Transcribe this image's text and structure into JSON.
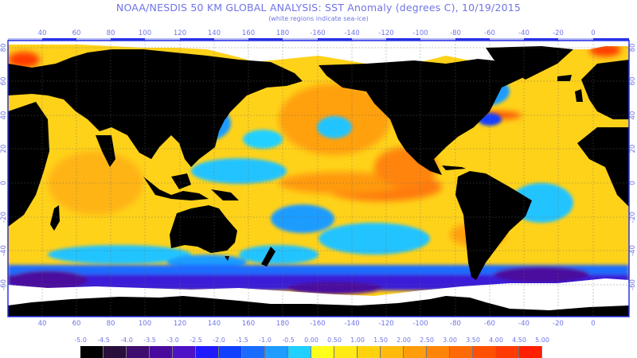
{
  "title": "NOAA/NESDIS 50 KM GLOBAL ANALYSIS: SST Anomaly (degrees C), 10/19/2015",
  "subtitle": "(white regions indicate sea-ice)",
  "lon_ticks": [
    "40",
    "60",
    "80",
    "100",
    "120",
    "140",
    "160",
    "180",
    "-160",
    "-140",
    "-120",
    "-100",
    "-80",
    "-60",
    "-40",
    "-20",
    "0"
  ],
  "lat_ticks": [
    "80",
    "60",
    "40",
    "20",
    "0",
    "-20",
    "-40",
    "-60"
  ],
  "colorbar": {
    "labels": [
      "-5.0",
      "-4.5",
      "-4.0",
      "-3.5",
      "-3.0",
      "-2.5",
      "-2.0",
      "-1.5",
      "-1.0",
      "-0.5",
      "0.00",
      "0.50",
      "1.00",
      "1.50",
      "2.00",
      "2.50",
      "3.00",
      "3.50",
      "4.00",
      "4.50",
      "5.00"
    ],
    "colors": [
      "#000000",
      "#2a0f3c",
      "#3f0d6e",
      "#4b0a9e",
      "#4d12c8",
      "#1f1aff",
      "#1240ff",
      "#1a6cff",
      "#1e9cff",
      "#20d0ff",
      "#ffff1a",
      "#ffea14",
      "#ffd210",
      "#ffba0c",
      "#ff9c0a",
      "#ff8408",
      "#ff6a06",
      "#ff5004",
      "#ff3a02",
      "#ff1f01"
    ]
  },
  "legend_colors": {
    "land": "#000000",
    "sea_ice": "#ffffff",
    "axis": "#6f74e6",
    "frame": "#2832e6"
  }
}
